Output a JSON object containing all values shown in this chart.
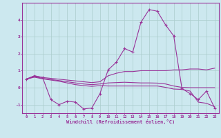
{
  "xlabel": "Windchill (Refroidissement éolien,°C)",
  "background_color": "#cce8ef",
  "line_color": "#993399",
  "grid_color": "#aacccc",
  "x_values": [
    0,
    1,
    2,
    3,
    4,
    5,
    6,
    7,
    8,
    9,
    10,
    11,
    12,
    13,
    14,
    15,
    16,
    17,
    18,
    19,
    20,
    21,
    22,
    23
  ],
  "series_main": [
    0.5,
    0.7,
    0.6,
    -0.7,
    -1.0,
    -0.8,
    -0.85,
    -1.25,
    -1.2,
    -0.35,
    1.05,
    1.5,
    2.3,
    2.1,
    3.85,
    4.6,
    4.5,
    3.7,
    3.05,
    -0.05,
    -0.35,
    -0.7,
    -0.2,
    -1.2
  ],
  "series_upper": [
    0.5,
    0.7,
    0.6,
    0.55,
    0.5,
    0.45,
    0.4,
    0.35,
    0.3,
    0.35,
    0.7,
    0.85,
    0.95,
    0.95,
    1.0,
    1.0,
    1.0,
    1.0,
    1.05,
    1.05,
    1.1,
    1.1,
    1.05,
    1.15
  ],
  "series_mid": [
    0.5,
    0.65,
    0.55,
    0.48,
    0.42,
    0.35,
    0.28,
    0.22,
    0.18,
    0.22,
    0.28,
    0.3,
    0.32,
    0.3,
    0.28,
    0.28,
    0.27,
    0.22,
    0.1,
    0.02,
    0.0,
    0.0,
    0.0,
    0.0
  ],
  "series_lower": [
    0.5,
    0.62,
    0.52,
    0.45,
    0.38,
    0.28,
    0.18,
    0.12,
    0.08,
    0.12,
    0.1,
    0.1,
    0.1,
    0.1,
    0.1,
    0.1,
    0.1,
    0.02,
    -0.08,
    -0.1,
    -0.2,
    -0.85,
    -0.92,
    -1.12
  ],
  "ylim": [
    -1.5,
    5.0
  ],
  "yticks": [
    -1,
    0,
    1,
    2,
    3,
    4
  ],
  "xlim": [
    -0.5,
    23.5
  ],
  "xticks": [
    0,
    1,
    2,
    3,
    4,
    5,
    6,
    7,
    8,
    9,
    10,
    11,
    12,
    13,
    14,
    15,
    16,
    17,
    18,
    19,
    20,
    21,
    22,
    23
  ],
  "xtick_labels": [
    "0",
    "1",
    "2",
    "3",
    "4",
    "5",
    "6",
    "7",
    "8",
    "9",
    "10",
    "11",
    "12",
    "13",
    "14",
    "15",
    "16",
    "17",
    "18",
    "19",
    "20",
    "21",
    "22",
    "23"
  ]
}
